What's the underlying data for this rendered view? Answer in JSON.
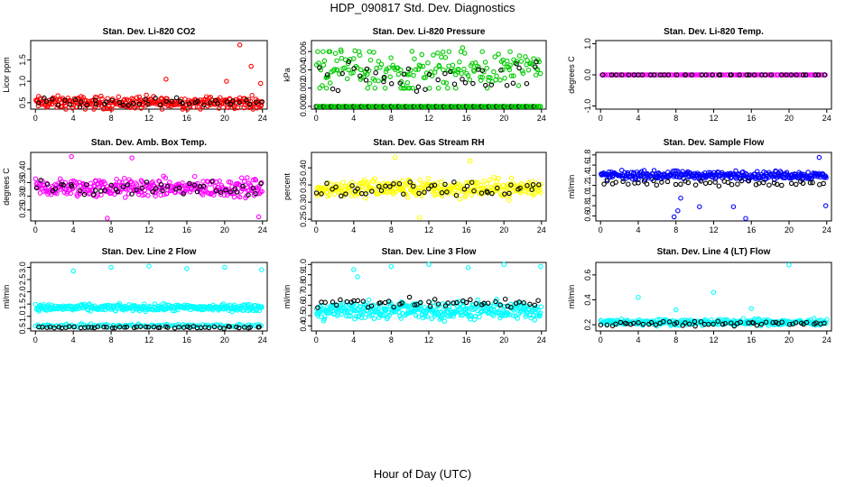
{
  "title": "HDP_090817  Std. Dev. Diagnostics",
  "xlabel": "Hour of Day (UTC)",
  "chart_data": [
    {
      "type": "scatter",
      "title": "Stan. Dev. Li-820 CO2",
      "ylabel": "Licor ppm",
      "xlim": [
        -0.5,
        24.5
      ],
      "ylim": [
        0.35,
        1.95
      ],
      "xticks": [
        "0",
        "4",
        "8",
        "12",
        "16",
        "20",
        "24"
      ],
      "yticks": [
        "0.5",
        "1.0",
        "1.5"
      ],
      "ytick_values": [
        0.5,
        1.0,
        1.5
      ],
      "series": [
        {
          "name": "primary",
          "color": "#ff0000",
          "base": 0.5,
          "spread": 0.22,
          "count": 300
        },
        {
          "name": "secondary",
          "color": "#000000",
          "base": 0.52,
          "spread": 0.15,
          "count": 45
        }
      ],
      "outliers": [
        [
          21.6,
          1.85
        ],
        [
          22.8,
          1.35
        ],
        [
          23.8,
          0.95
        ],
        [
          13.8,
          1.05
        ],
        [
          20.2,
          1.0
        ]
      ]
    },
    {
      "type": "scatter",
      "title": "Stan. Dev. Li-820 Pressure",
      "ylabel": "kPa",
      "xlim": [
        -0.5,
        24.5
      ],
      "ylim": [
        -0.0003,
        0.0072
      ],
      "xticks": [
        "0",
        "4",
        "8",
        "12",
        "16",
        "20",
        "24"
      ],
      "yticks": [
        "0.000",
        "0.002",
        "0.004",
        "0.006"
      ],
      "ytick_values": [
        0,
        0.002,
        0.004,
        0.006
      ],
      "series": [
        {
          "name": "primary",
          "color": "#00cc00",
          "base": 0.002,
          "spread": 0.0,
          "count": 120,
          "levels": [
            0,
            0.002,
            0.004,
            0.006
          ]
        },
        {
          "name": "primary-scatter",
          "color": "#00cc00",
          "base": 0.004,
          "spread": 0.0028,
          "count": 170
        },
        {
          "name": "secondary",
          "color": "#000000",
          "base": 0.003,
          "spread": 0.0025,
          "count": 40
        }
      ],
      "outliers": []
    },
    {
      "type": "scatter",
      "title": "Stan. Dev. Li-820 Temp.",
      "ylabel": "degrees C",
      "xlim": [
        -0.5,
        24.5
      ],
      "ylim": [
        -1.1,
        1.1
      ],
      "xticks": [
        "0",
        "4",
        "8",
        "12",
        "16",
        "20",
        "24"
      ],
      "yticks": [
        "-1.0",
        "0.0",
        "1.0"
      ],
      "ytick_values": [
        -1,
        0,
        1
      ],
      "series": [
        {
          "name": "primary",
          "color": "#ff00ff",
          "base": 0.0,
          "spread": 0.0,
          "count": 140
        },
        {
          "name": "secondary",
          "color": "#000000",
          "base": 0.0,
          "spread": 0.0,
          "count": 40
        }
      ],
      "outliers": []
    },
    {
      "type": "scatter",
      "title": "Stan. Dev. Amb. Box Temp.",
      "ylabel": "degrees C",
      "xlim": [
        -0.5,
        24.5
      ],
      "ylim": [
        0.21,
        0.46
      ],
      "xticks": [
        "0",
        "4",
        "8",
        "12",
        "16",
        "20",
        "24"
      ],
      "yticks": [
        "0.25",
        "0.30",
        "0.35",
        "0.40"
      ],
      "ytick_values": [
        0.25,
        0.3,
        0.35,
        0.4
      ],
      "series": [
        {
          "name": "primary",
          "color": "#ff00ff",
          "base": 0.33,
          "spread": 0.05,
          "count": 320
        },
        {
          "name": "secondary",
          "color": "#000000",
          "base": 0.33,
          "spread": 0.04,
          "count": 50
        }
      ],
      "outliers": [
        [
          3.8,
          0.445
        ],
        [
          23.6,
          0.225
        ],
        [
          7.6,
          0.22
        ],
        [
          10.2,
          0.44
        ]
      ]
    },
    {
      "type": "scatter",
      "title": "Stan. Dev. Gas Stream RH",
      "ylabel": "percent",
      "xlim": [
        -0.5,
        24.5
      ],
      "ylim": [
        0.245,
        0.445
      ],
      "xticks": [
        "0",
        "4",
        "8",
        "12",
        "16",
        "20",
        "24"
      ],
      "yticks": [
        "0.25",
        "0.30",
        "0.35",
        "0.40"
      ],
      "ytick_values": [
        0.25,
        0.3,
        0.35,
        0.4
      ],
      "series": [
        {
          "name": "primary",
          "color": "#ffff00",
          "base": 0.34,
          "spread": 0.04,
          "count": 320
        },
        {
          "name": "secondary",
          "color": "#000000",
          "base": 0.34,
          "spread": 0.035,
          "count": 50
        }
      ],
      "outliers": [
        [
          8.4,
          0.43
        ],
        [
          16.4,
          0.42
        ],
        [
          11.0,
          0.255
        ]
      ]
    },
    {
      "type": "scatter",
      "title": "Stan. Dev. Sample Flow",
      "ylabel": "ml/min",
      "xlim": [
        -0.5,
        24.5
      ],
      "ylim": [
        0.5,
        1.85
      ],
      "xticks": [
        "0",
        "4",
        "8",
        "12",
        "16",
        "20",
        "24"
      ],
      "yticks": [
        "0.6",
        "0.8",
        "1.0",
        "1.2",
        "1.4",
        "1.6",
        "1.8"
      ],
      "ytick_values": [
        0.6,
        0.8,
        1.0,
        1.2,
        1.4,
        1.6,
        1.8
      ],
      "series": [
        {
          "name": "primary",
          "color": "#0000ff",
          "base": 1.4,
          "spread": 0.12,
          "count": 320
        },
        {
          "name": "secondary",
          "color": "#000000",
          "base": 1.25,
          "spread": 0.08,
          "count": 45
        }
      ],
      "outliers": [
        [
          7.8,
          0.58
        ],
        [
          8.2,
          0.7
        ],
        [
          8.5,
          0.95
        ],
        [
          15.4,
          0.55
        ],
        [
          14.1,
          0.78
        ],
        [
          23.9,
          0.8
        ],
        [
          10.5,
          0.78
        ],
        [
          23.2,
          1.75
        ]
      ]
    },
    {
      "type": "scatter",
      "title": "Stan. Dev. Line 2 Flow",
      "ylabel": "ml/min",
      "xlim": [
        -0.5,
        24.5
      ],
      "ylim": [
        0.4,
        3.2
      ],
      "xticks": [
        "0",
        "4",
        "8",
        "12",
        "16",
        "20",
        "24"
      ],
      "yticks": [
        "0.5",
        "1.0",
        "1.5",
        "2.0",
        "2.5",
        "3.0"
      ],
      "ytick_values": [
        0.5,
        1.0,
        1.5,
        2.0,
        2.5,
        3.0
      ],
      "series": [
        {
          "name": "primary",
          "color": "#00ffff",
          "base": 1.35,
          "spread": 0.2,
          "count": 320
        },
        {
          "name": "primary-low",
          "color": "#00ffff",
          "base": 0.62,
          "spread": 0.1,
          "count": 120
        },
        {
          "name": "secondary",
          "color": "#000000",
          "base": 0.55,
          "spread": 0.06,
          "count": 55
        }
      ],
      "outliers": [
        [
          4.0,
          2.85
        ],
        [
          8.0,
          3.0
        ],
        [
          12.0,
          3.05
        ],
        [
          16.0,
          2.95
        ],
        [
          20.0,
          3.0
        ],
        [
          23.9,
          2.9
        ]
      ]
    },
    {
      "type": "scatter",
      "title": "Stan. Dev. Line 3 Flow",
      "ylabel": "ml/min",
      "xlim": [
        -0.5,
        24.5
      ],
      "ylim": [
        0.35,
        1.02
      ],
      "xticks": [
        "0",
        "4",
        "8",
        "12",
        "16",
        "20",
        "24"
      ],
      "yticks": [
        "0.4",
        "0.5",
        "0.6",
        "0.7",
        "0.8",
        "0.9",
        "1.0"
      ],
      "ytick_values": [
        0.4,
        0.5,
        0.6,
        0.7,
        0.8,
        0.9,
        1.0
      ],
      "series": [
        {
          "name": "primary",
          "color": "#00ffff",
          "base": 0.55,
          "spread": 0.13,
          "count": 380
        },
        {
          "name": "secondary",
          "color": "#000000",
          "base": 0.62,
          "spread": 0.07,
          "count": 50
        }
      ],
      "outliers": [
        [
          4.0,
          0.95
        ],
        [
          4.4,
          0.88
        ],
        [
          8.0,
          0.98
        ],
        [
          12.0,
          1.0
        ],
        [
          16.2,
          0.97
        ],
        [
          20.0,
          1.0
        ],
        [
          23.9,
          0.98
        ]
      ]
    },
    {
      "type": "scatter",
      "title": "Stan. Dev. Line 4 (LT) Flow",
      "ylabel": "ml/min",
      "xlim": [
        -0.5,
        24.5
      ],
      "ylim": [
        0.15,
        0.7
      ],
      "xticks": [
        "0",
        "4",
        "8",
        "12",
        "16",
        "20",
        "24"
      ],
      "yticks": [
        "0.2",
        "0.4",
        "0.6"
      ],
      "ytick_values": [
        0.2,
        0.4,
        0.6
      ],
      "series": [
        {
          "name": "primary",
          "color": "#00ffff",
          "base": 0.22,
          "spread": 0.035,
          "count": 320
        },
        {
          "name": "secondary",
          "color": "#000000",
          "base": 0.21,
          "spread": 0.025,
          "count": 55
        }
      ],
      "outliers": [
        [
          4.0,
          0.42
        ],
        [
          12.0,
          0.46
        ],
        [
          20.0,
          0.68
        ],
        [
          8.0,
          0.32
        ],
        [
          16.0,
          0.33
        ]
      ]
    }
  ]
}
